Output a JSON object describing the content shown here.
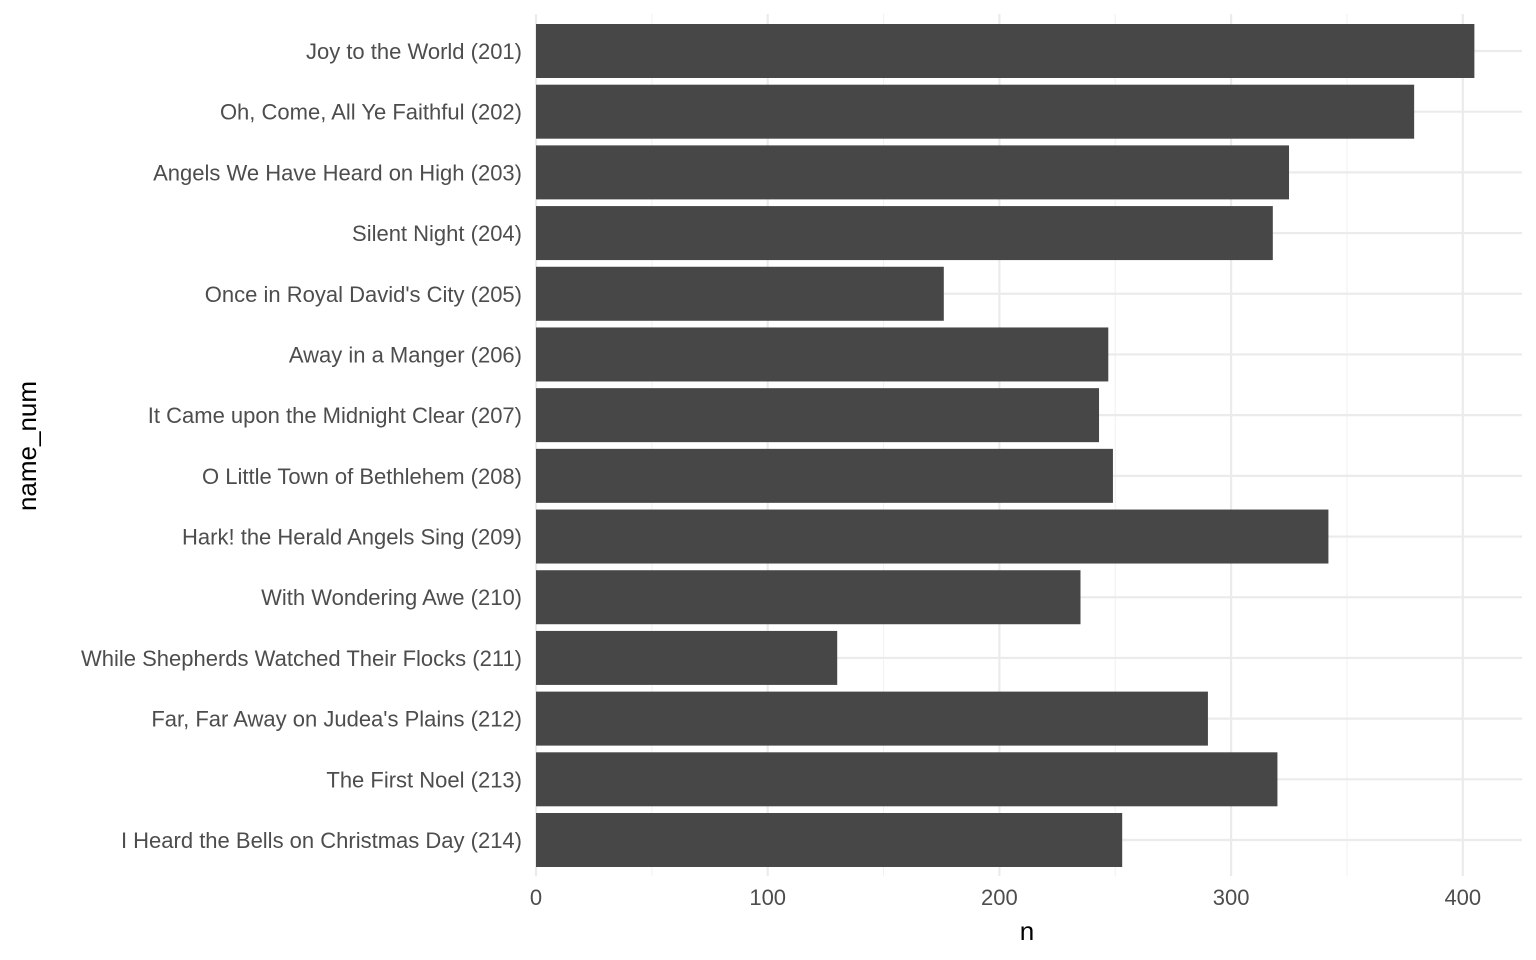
{
  "chart_data": {
    "type": "bar",
    "orientation": "horizontal",
    "xlabel": "n",
    "ylabel": "name_num",
    "xlim": [
      0,
      420
    ],
    "x_ticks": [
      0,
      100,
      200,
      300,
      400
    ],
    "grid": true,
    "bar_color": "#474747",
    "categories": [
      "Joy to the World (201)",
      "Oh, Come, All Ye Faithful (202)",
      "Angels We Have Heard on High (203)",
      "Silent Night (204)",
      "Once in Royal David's City (205)",
      "Away in a Manger (206)",
      "It Came upon the Midnight Clear (207)",
      "O Little Town of Bethlehem (208)",
      "Hark! the Herald Angels Sing (209)",
      "With Wondering Awe (210)",
      "While Shepherds Watched Their Flocks (211)",
      "Far, Far Away on Judea's Plains (212)",
      "The First Noel (213)",
      "I Heard the Bells on Christmas Day (214)"
    ],
    "values": [
      405,
      379,
      325,
      318,
      176,
      247,
      243,
      249,
      342,
      235,
      130,
      290,
      320,
      253
    ]
  }
}
